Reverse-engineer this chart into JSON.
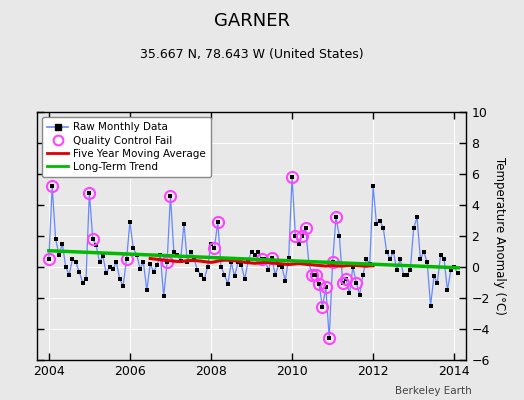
{
  "title": "GARNER",
  "subtitle": "35.667 N, 78.643 W (United States)",
  "ylabel": "Temperature Anomaly (°C)",
  "credit": "Berkeley Earth",
  "xlim": [
    2003.7,
    2014.3
  ],
  "ylim": [
    -6,
    10
  ],
  "yticks": [
    -6,
    -4,
    -2,
    0,
    2,
    4,
    6,
    8,
    10
  ],
  "xticks": [
    2004,
    2006,
    2008,
    2010,
    2012,
    2014
  ],
  "bg_color": "#ebebeb",
  "plot_bg": "#e8e8e8",
  "raw_color": "#6688ff",
  "raw_marker_color": "#000000",
  "qc_color": "#ff44ff",
  "ma_color": "#dd0000",
  "trend_color": "#00bb00",
  "raw_x": [
    2004.0,
    2004.083,
    2004.167,
    2004.25,
    2004.333,
    2004.417,
    2004.5,
    2004.583,
    2004.667,
    2004.75,
    2004.833,
    2004.917,
    2005.0,
    2005.083,
    2005.167,
    2005.25,
    2005.333,
    2005.417,
    2005.5,
    2005.583,
    2005.667,
    2005.75,
    2005.833,
    2005.917,
    2006.0,
    2006.083,
    2006.167,
    2006.25,
    2006.333,
    2006.417,
    2006.5,
    2006.583,
    2006.667,
    2006.75,
    2006.833,
    2006.917,
    2007.0,
    2007.083,
    2007.167,
    2007.25,
    2007.333,
    2007.417,
    2007.5,
    2007.583,
    2007.667,
    2007.75,
    2007.833,
    2007.917,
    2008.0,
    2008.083,
    2008.167,
    2008.25,
    2008.333,
    2008.417,
    2008.5,
    2008.583,
    2008.667,
    2008.75,
    2008.833,
    2008.917,
    2009.0,
    2009.083,
    2009.167,
    2009.25,
    2009.333,
    2009.417,
    2009.5,
    2009.583,
    2009.667,
    2009.75,
    2009.833,
    2009.917,
    2010.0,
    2010.083,
    2010.167,
    2010.25,
    2010.333,
    2010.417,
    2010.5,
    2010.583,
    2010.667,
    2010.75,
    2010.833,
    2010.917,
    2011.0,
    2011.083,
    2011.167,
    2011.25,
    2011.333,
    2011.417,
    2011.5,
    2011.583,
    2011.667,
    2011.75,
    2011.833,
    2011.917,
    2012.0,
    2012.083,
    2012.167,
    2012.25,
    2012.333,
    2012.417,
    2012.5,
    2012.583,
    2012.667,
    2012.75,
    2012.833,
    2012.917,
    2013.0,
    2013.083,
    2013.167,
    2013.25,
    2013.333,
    2013.417,
    2013.5,
    2013.583,
    2013.667,
    2013.75,
    2013.833,
    2013.917,
    2014.0,
    2014.083
  ],
  "raw_y": [
    0.5,
    5.2,
    1.8,
    0.8,
    1.5,
    0.0,
    -0.5,
    0.5,
    0.3,
    -0.3,
    -1.0,
    -0.8,
    4.8,
    1.8,
    1.4,
    0.3,
    0.7,
    -0.4,
    0.0,
    -0.1,
    0.3,
    -0.8,
    -1.2,
    0.5,
    2.9,
    1.2,
    0.8,
    -0.1,
    0.3,
    -1.5,
    0.2,
    -0.3,
    0.1,
    0.8,
    -1.9,
    0.3,
    4.6,
    1.0,
    0.8,
    0.4,
    2.8,
    0.3,
    1.0,
    0.5,
    -0.2,
    -0.5,
    -0.8,
    0.0,
    1.5,
    1.2,
    2.9,
    0.0,
    -0.5,
    -1.1,
    0.3,
    -0.6,
    0.3,
    0.1,
    -0.8,
    0.4,
    1.0,
    0.8,
    1.0,
    0.5,
    0.5,
    -0.2,
    0.6,
    -0.5,
    0.1,
    0.0,
    -0.9,
    0.6,
    5.8,
    2.0,
    1.5,
    2.0,
    2.5,
    0.2,
    -0.5,
    -0.5,
    -1.1,
    -2.6,
    -1.3,
    -4.6,
    0.3,
    3.2,
    2.0,
    -1.0,
    -0.8,
    -1.7,
    0.0,
    -1.0,
    -1.8,
    -0.5,
    0.5,
    0.2,
    5.2,
    2.8,
    3.0,
    2.5,
    1.0,
    0.5,
    1.0,
    -0.2,
    0.5,
    -0.5,
    -0.5,
    -0.2,
    2.5,
    3.2,
    0.5,
    1.0,
    0.3,
    -2.5,
    -0.6,
    -1.0,
    0.8,
    0.5,
    -1.5,
    -0.2,
    0.0,
    -0.4
  ],
  "qc_x": [
    2004.0,
    2004.083,
    2005.0,
    2005.083,
    2005.917,
    2006.917,
    2007.0,
    2008.083,
    2008.167,
    2009.25,
    2009.5,
    2010.0,
    2010.083,
    2010.25,
    2010.333,
    2010.5,
    2010.583,
    2010.667,
    2010.75,
    2010.833,
    2010.917,
    2011.0,
    2011.083,
    2011.25,
    2011.333,
    2011.583
  ],
  "qc_y": [
    0.5,
    5.2,
    4.8,
    1.8,
    0.5,
    0.3,
    4.6,
    1.2,
    2.9,
    0.5,
    0.6,
    5.8,
    2.0,
    2.0,
    2.5,
    -0.5,
    -0.5,
    -1.1,
    -2.6,
    -1.3,
    -4.6,
    0.3,
    3.2,
    -1.0,
    -0.8,
    -1.0
  ],
  "ma_x": [
    2006.5,
    2006.583,
    2006.667,
    2006.75,
    2006.833,
    2006.917,
    2007.0,
    2007.083,
    2007.167,
    2007.25,
    2007.333,
    2007.417,
    2007.5,
    2007.583,
    2007.667,
    2007.75,
    2007.833,
    2007.917,
    2008.0,
    2008.083,
    2008.167,
    2008.25,
    2008.333,
    2008.417,
    2008.5,
    2008.583,
    2008.667,
    2008.75,
    2008.833,
    2008.917,
    2009.0,
    2009.083,
    2009.167,
    2009.25,
    2009.333,
    2009.417,
    2009.5,
    2009.583,
    2009.667,
    2009.75,
    2009.833,
    2009.917,
    2010.0,
    2010.083,
    2010.167,
    2010.25,
    2010.333,
    2010.417,
    2010.5,
    2010.583,
    2010.667,
    2010.75,
    2010.833,
    2010.917,
    2011.0,
    2011.083,
    2011.167,
    2011.25,
    2011.333,
    2011.417,
    2011.5,
    2011.583,
    2011.667,
    2011.75,
    2011.833,
    2011.917,
    2012.0
  ],
  "ma_y": [
    0.55,
    0.52,
    0.5,
    0.47,
    0.44,
    0.42,
    0.4,
    0.38,
    0.36,
    0.35,
    0.38,
    0.4,
    0.42,
    0.42,
    0.4,
    0.38,
    0.35,
    0.32,
    0.3,
    0.33,
    0.38,
    0.42,
    0.44,
    0.44,
    0.42,
    0.4,
    0.38,
    0.35,
    0.3,
    0.28,
    0.26,
    0.24,
    0.26,
    0.28,
    0.3,
    0.28,
    0.26,
    0.24,
    0.22,
    0.2,
    0.18,
    0.16,
    0.18,
    0.2,
    0.22,
    0.2,
    0.18,
    0.16,
    0.14,
    0.12,
    0.1,
    0.08,
    0.06,
    0.08,
    0.1,
    0.08,
    0.06,
    0.06,
    0.08,
    0.1,
    0.12,
    0.1,
    0.08,
    0.06,
    0.05,
    0.07,
    0.08
  ],
  "trend_x": [
    2004.0,
    2014.1
  ],
  "trend_y": [
    1.05,
    -0.05
  ]
}
